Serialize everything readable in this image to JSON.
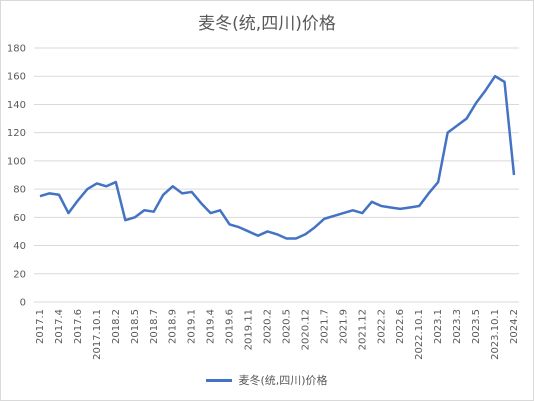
{
  "chart_data": {
    "type": "line",
    "title": "麦冬(统,四川)价格",
    "xlabel": "",
    "ylabel": "",
    "ylim": [
      0,
      180
    ],
    "yticks": [
      0,
      20,
      40,
      60,
      80,
      100,
      120,
      140,
      160,
      180
    ],
    "grid": true,
    "legend": "bottom",
    "color": "#4472c4",
    "x_tick_labels": [
      "2017.1",
      "2017.4",
      "2017.6",
      "2017.10.1",
      "2018.2",
      "2018.5",
      "2018.7",
      "2018.9",
      "2019.1",
      "2019.4",
      "2019.6",
      "2019.11",
      "2020.2",
      "2020.5",
      "2020.12",
      "2021.7",
      "2021.9",
      "2021.12",
      "2022.2",
      "2022.6",
      "2022.10.1",
      "2023.1",
      "2023.3",
      "2023.5",
      "2023.10.1",
      "2024.2"
    ],
    "series": [
      {
        "name": "麦冬(统,四川)价格",
        "values": [
          75,
          77,
          76,
          63,
          72,
          80,
          84,
          82,
          85,
          58,
          60,
          65,
          64,
          76,
          82,
          77,
          78,
          70,
          63,
          65,
          55,
          53,
          50,
          47,
          50,
          48,
          45,
          45,
          48,
          53,
          59,
          61,
          63,
          65,
          63,
          71,
          68,
          67,
          66,
          67,
          68,
          77,
          85,
          120,
          125,
          130,
          141,
          150,
          160,
          156,
          90
        ]
      }
    ]
  }
}
